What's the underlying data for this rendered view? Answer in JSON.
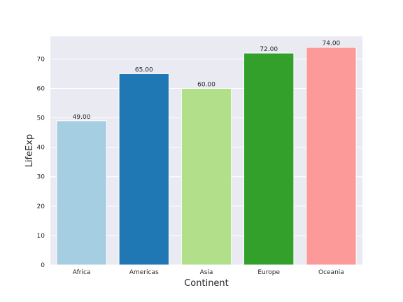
{
  "chart_data": {
    "type": "bar",
    "categories": [
      "Africa",
      "Americas",
      "Asia",
      "Europe",
      "Oceania"
    ],
    "values": [
      49,
      65,
      60,
      72,
      74
    ],
    "value_labels": [
      "49.00",
      "65.00",
      "60.00",
      "72.00",
      "74.00"
    ],
    "colors": [
      "#a6cee3",
      "#1f78b4",
      "#b2df8a",
      "#33a02c",
      "#fb9a99"
    ],
    "title": "",
    "xlabel": "Continent",
    "ylabel": "LifeExp",
    "ylim": [
      0,
      77.7
    ],
    "yticks": [
      0,
      10,
      20,
      30,
      40,
      50,
      60,
      70
    ],
    "grid": true,
    "background": "#eaeaf2"
  }
}
